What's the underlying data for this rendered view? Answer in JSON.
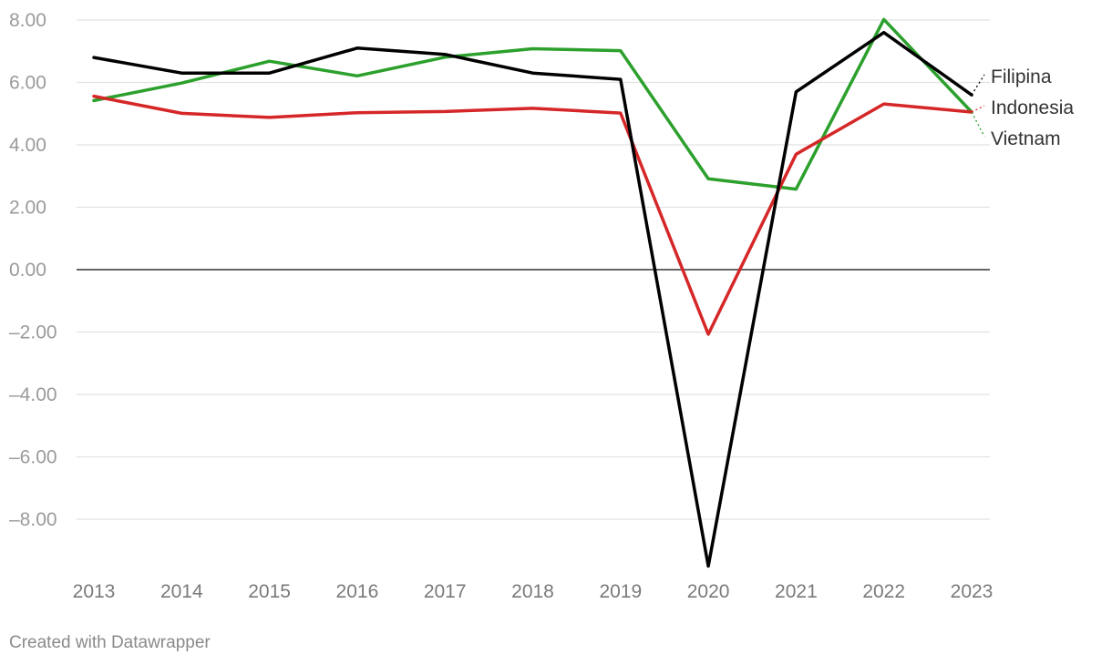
{
  "chart_data": {
    "type": "line",
    "x": [
      2013,
      2014,
      2015,
      2016,
      2017,
      2018,
      2019,
      2020,
      2021,
      2022,
      2023
    ],
    "x_tick_labels": [
      "2013",
      "2014",
      "2015",
      "2016",
      "2017",
      "2018",
      "2019",
      "2020",
      "2021",
      "2022",
      "2023"
    ],
    "y_ticks": [
      8,
      6,
      4,
      2,
      0,
      -2,
      -4,
      -6,
      -8
    ],
    "y_tick_labels": [
      "8.00",
      "6.00",
      "4.00",
      "2.00",
      "0.00",
      "–2.00",
      "–4.00",
      "–6.00",
      "–8.00"
    ],
    "ylim": [
      -9.5,
      8.2
    ],
    "grid": true,
    "legend": "direct-labels-right",
    "series": [
      {
        "name": "Vietnam",
        "color": "#2ca02c",
        "values": [
          5.42,
          5.98,
          6.68,
          6.21,
          6.81,
          7.08,
          7.02,
          2.91,
          2.58,
          8.02,
          5.05
        ]
      },
      {
        "name": "Indonesia",
        "color": "#d62728",
        "values": [
          5.56,
          5.01,
          4.88,
          5.03,
          5.07,
          5.17,
          5.02,
          -2.07,
          3.7,
          5.31,
          5.05
        ]
      },
      {
        "name": "Filipina",
        "color": "#000000",
        "values": [
          6.8,
          6.3,
          6.3,
          7.1,
          6.9,
          6.3,
          6.1,
          -9.5,
          5.7,
          7.6,
          5.6
        ]
      }
    ]
  },
  "footer": {
    "credit": "Created with Datawrapper"
  }
}
